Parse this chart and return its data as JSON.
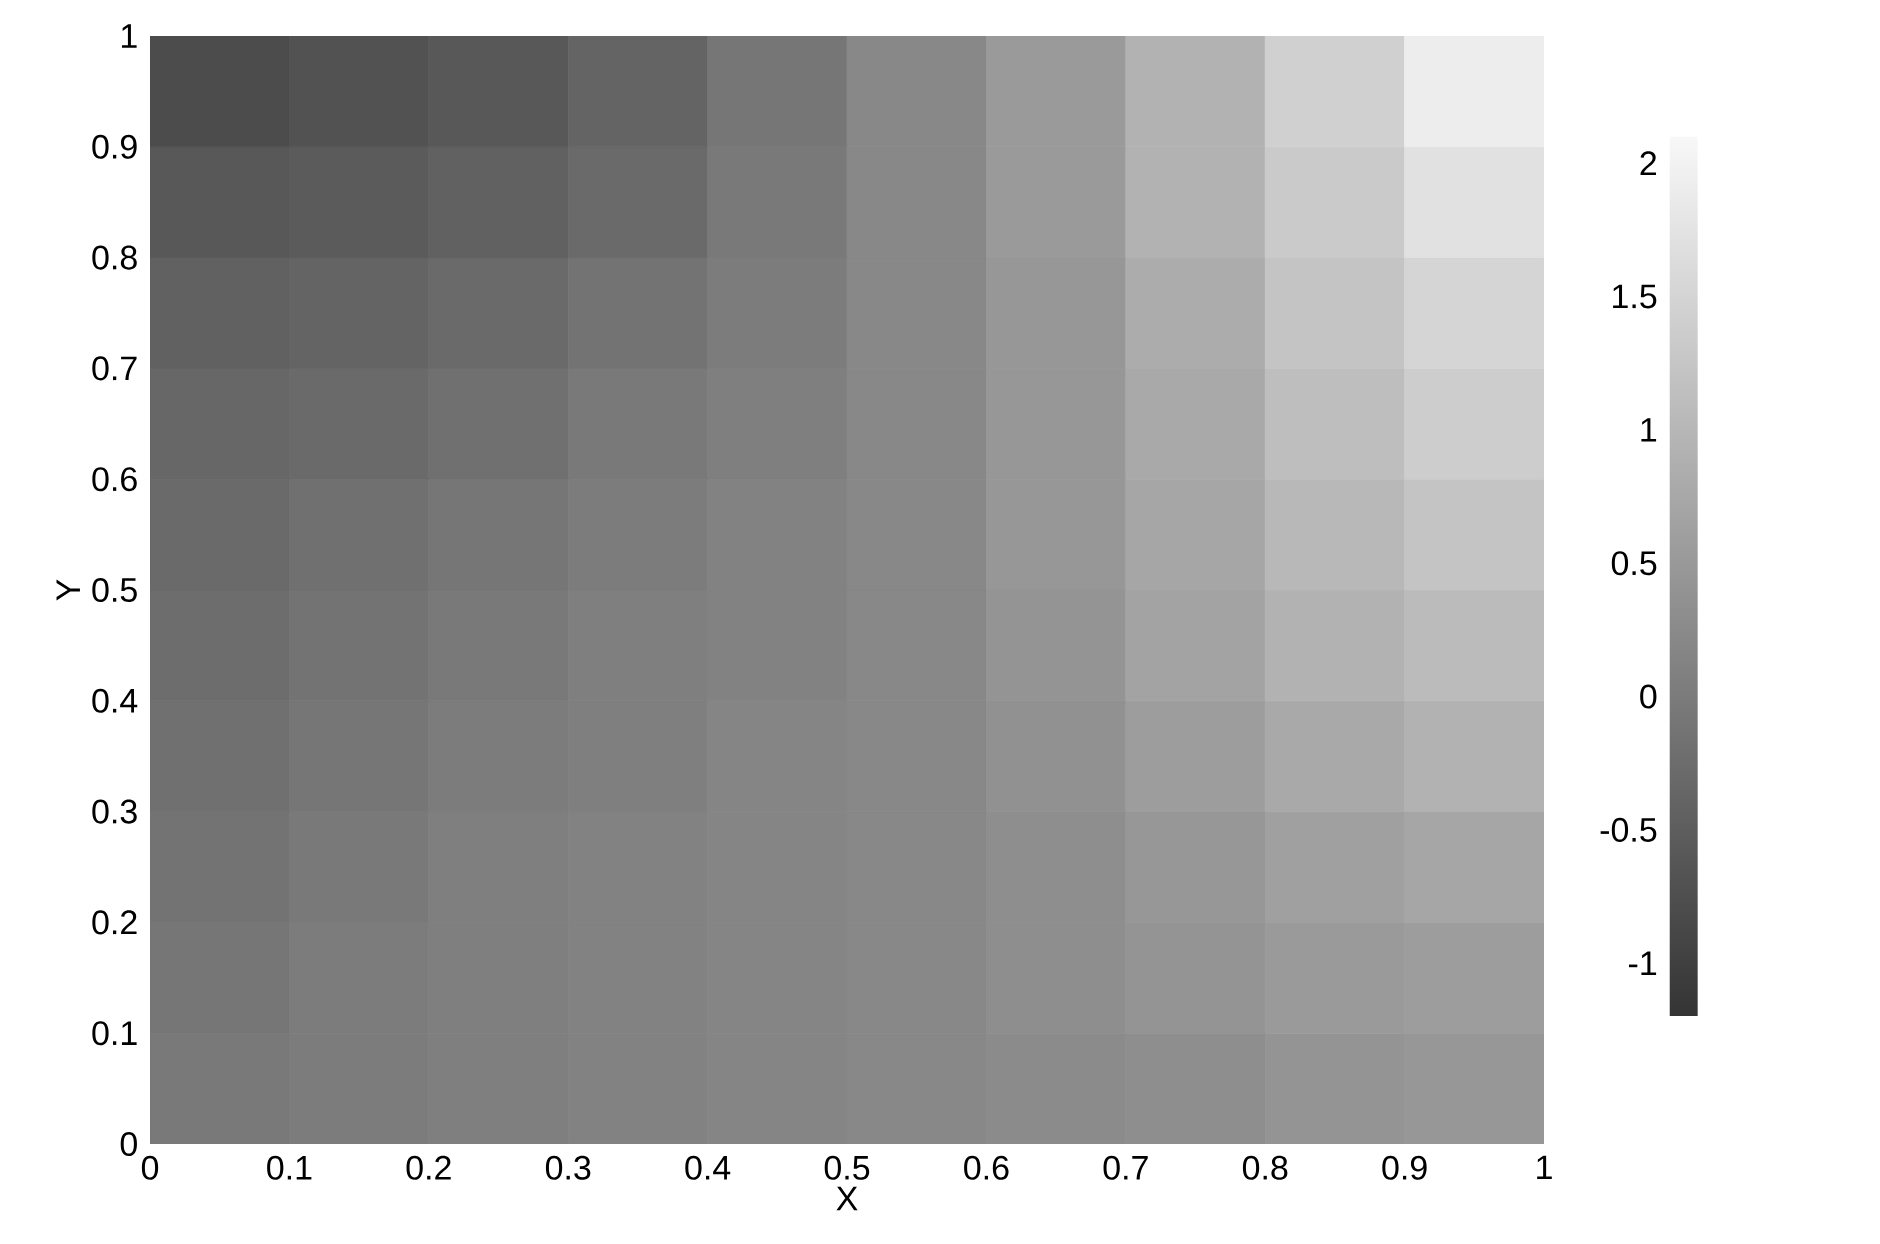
{
  "chart_data": {
    "type": "heatmap",
    "xlabel": "X",
    "ylabel": "Y",
    "xlim": [
      0,
      1
    ],
    "ylim": [
      0,
      1
    ],
    "xticks": [
      0,
      0.1,
      0.2,
      0.3,
      0.4,
      0.5,
      0.6,
      0.7,
      0.8,
      0.9,
      1
    ],
    "yticks": [
      0,
      0.1,
      0.2,
      0.3,
      0.4,
      0.5,
      0.6,
      0.7,
      0.8,
      0.9,
      1
    ],
    "clim": [
      -1.2,
      2.1
    ],
    "cticks": [
      -1,
      -0.5,
      0,
      0.5,
      1,
      1.5,
      2
    ],
    "cells": [
      [
        -0.8,
        -0.7,
        -0.6,
        -0.4,
        -0.1,
        0.2,
        0.5,
        0.9,
        1.4,
        1.9
      ],
      [
        -0.6,
        -0.55,
        -0.45,
        -0.3,
        -0.05,
        0.2,
        0.5,
        0.9,
        1.3,
        1.7
      ],
      [
        -0.45,
        -0.4,
        -0.3,
        -0.15,
        0.0,
        0.2,
        0.45,
        0.8,
        1.2,
        1.5
      ],
      [
        -0.35,
        -0.3,
        -0.2,
        -0.05,
        0.05,
        0.2,
        0.45,
        0.75,
        1.1,
        1.35
      ],
      [
        -0.3,
        -0.2,
        -0.1,
        0.0,
        0.1,
        0.2,
        0.45,
        0.7,
        1.0,
        1.2
      ],
      [
        -0.25,
        -0.15,
        -0.05,
        0.05,
        0.1,
        0.2,
        0.4,
        0.65,
        0.9,
        1.05
      ],
      [
        -0.2,
        -0.1,
        0.0,
        0.05,
        0.15,
        0.2,
        0.35,
        0.55,
        0.75,
        0.9
      ],
      [
        -0.15,
        -0.05,
        0.05,
        0.1,
        0.15,
        0.2,
        0.3,
        0.45,
        0.6,
        0.7
      ],
      [
        -0.1,
        0.0,
        0.05,
        0.1,
        0.15,
        0.2,
        0.3,
        0.4,
        0.5,
        0.55
      ],
      [
        -0.05,
        0.0,
        0.05,
        0.1,
        0.15,
        0.2,
        0.25,
        0.3,
        0.4,
        0.45
      ]
    ]
  }
}
